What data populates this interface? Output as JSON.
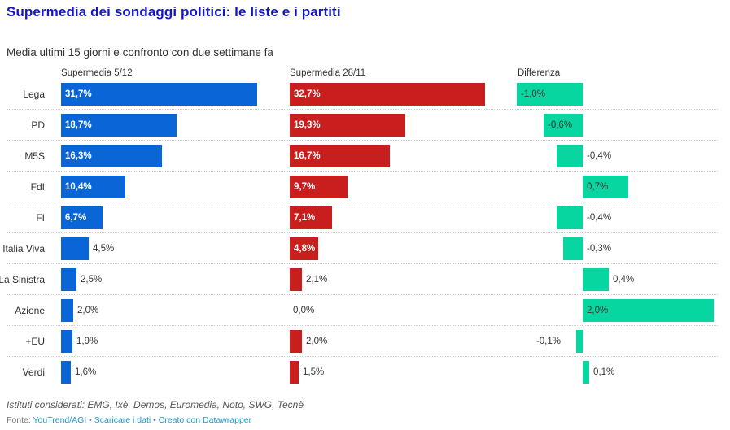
{
  "title": "Supermedia dei sondaggi politici: le liste e i partiti",
  "subtitle": "Media ultimi 15 giorni e confronto con due settimane fa",
  "notes": "Istituti considerati: EMG, Ixè, Demos, Euromedia, Noto, SWG, Tecnè",
  "footer": {
    "source_prefix": "Fonte: ",
    "source_link": "YouTrend/AGI",
    "separator": " • ",
    "download_link": "Scaricare i dati",
    "created_link": "Creato con Datawrapper"
  },
  "colors": {
    "title": "#1515c8",
    "current": "#0a66d6",
    "previous": "#c81e1e",
    "difference": "#07d6a0"
  },
  "chart_data": {
    "type": "bar",
    "title": "Supermedia dei sondaggi politici: le liste e i partiti",
    "subtitle": "Media ultimi 15 giorni e confronto con due settimane fa",
    "categories": [
      "Lega",
      "PD",
      "M5S",
      "FdI",
      "FI",
      "Italia Viva",
      "La Sinistra",
      "Azione",
      "+EU",
      "Verdi"
    ],
    "series": [
      {
        "name": "Supermedia 5/12",
        "values": [
          31.7,
          18.7,
          16.3,
          10.4,
          6.7,
          4.5,
          2.5,
          2.0,
          1.9,
          1.6
        ],
        "labels": [
          "31,7%",
          "18,7%",
          "16,3%",
          "10,4%",
          "6,7%",
          "4,5%",
          "2,5%",
          "2,0%",
          "1,9%",
          "1,6%"
        ]
      },
      {
        "name": "Supermedia 28/11",
        "values": [
          32.7,
          19.3,
          16.7,
          9.7,
          7.1,
          4.8,
          2.1,
          0.0,
          2.0,
          1.5
        ],
        "labels": [
          "32,7%",
          "19,3%",
          "16,7%",
          "9,7%",
          "7,1%",
          "4,8%",
          "2,1%",
          "0,0%",
          "2,0%",
          "1,5%"
        ]
      },
      {
        "name": "Differenza",
        "values": [
          -1.0,
          -0.6,
          -0.4,
          0.7,
          -0.4,
          -0.3,
          0.4,
          2.0,
          -0.1,
          0.1
        ],
        "labels": [
          "-1,0%",
          "-0,6%",
          "-0,4%",
          "0,7%",
          "-0,4%",
          "-0,3%",
          "0,4%",
          "2,0%",
          "-0,1%",
          "0,1%"
        ]
      }
    ],
    "xlabel": "",
    "ylabel": "",
    "grid": false,
    "legend": "column-headers"
  }
}
